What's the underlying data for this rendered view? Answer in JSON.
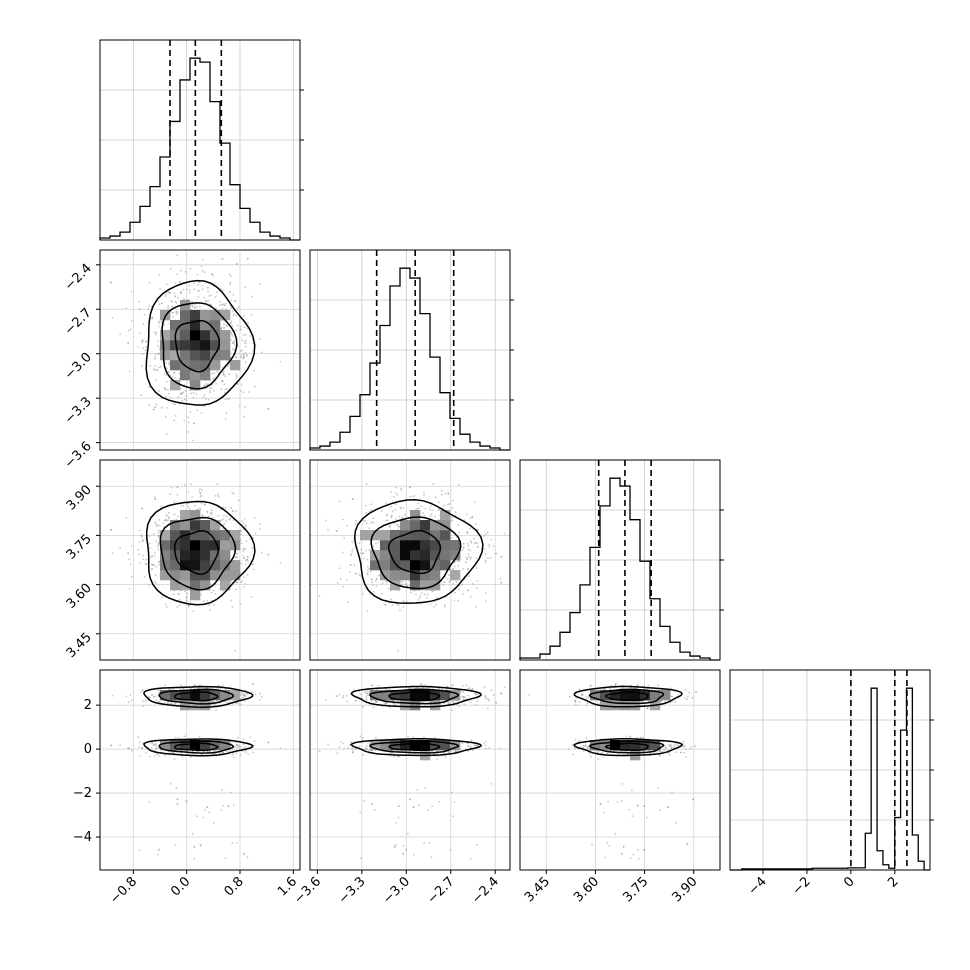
{
  "chart_data": {
    "type": "corner",
    "title": "",
    "grid": true,
    "n_params": 4,
    "params": [
      {
        "range": [
          -1.3,
          1.7
        ],
        "ticks": [
          -0.8,
          0.0,
          0.8,
          1.6
        ],
        "tick_labels": [
          "−0.8",
          "0.0",
          "0.8",
          "1.6"
        ],
        "quantiles": [
          -0.25,
          0.13,
          0.52
        ],
        "hist": [
          1,
          2,
          4,
          9,
          17,
          27,
          42,
          60,
          81,
          92,
          90,
          70,
          49,
          28,
          16,
          9,
          4,
          2,
          1,
          0
        ]
      },
      {
        "range": [
          -3.65,
          -2.3
        ],
        "ticks": [
          -3.6,
          -3.3,
          -3.0,
          -2.7,
          -2.4
        ],
        "tick_labels": [
          "−3.6",
          "−3.3",
          "−3.0",
          "−2.7",
          "−2.4"
        ],
        "quantiles": [
          -3.2,
          -2.94,
          -2.68
        ],
        "hist": [
          1,
          2,
          4,
          9,
          17,
          28,
          44,
          63,
          83,
          92,
          87,
          69,
          47,
          29,
          16,
          8,
          4,
          2,
          1,
          0
        ]
      },
      {
        "range": [
          3.37,
          3.98
        ],
        "ticks": [
          3.45,
          3.6,
          3.75,
          3.9
        ],
        "tick_labels": [
          "3.45",
          "3.60",
          "3.75",
          "3.90"
        ],
        "quantiles": [
          3.61,
          3.69,
          3.77
        ],
        "hist": [
          1,
          1,
          3,
          7,
          14,
          24,
          38,
          57,
          78,
          92,
          88,
          71,
          50,
          31,
          17,
          9,
          4,
          2,
          1,
          0
        ]
      },
      {
        "range": [
          -5.5,
          3.6
        ],
        "ticks": [
          -4,
          -2,
          0,
          2
        ],
        "tick_labels": [
          "−4",
          "−2",
          "0",
          "2"
        ],
        "quantiles": [
          0.0,
          2.0,
          2.55
        ],
        "hist": [
          0,
          0,
          0.3,
          0.3,
          0.3,
          0.3,
          0.3,
          0.3,
          0.3,
          0.3,
          0.3,
          0.3,
          0.3,
          0.3,
          0.5,
          0.5,
          0.5,
          0.5,
          0.5,
          0.5,
          0.6,
          0.6,
          0.6,
          10.5,
          52,
          5.5,
          1.5,
          0.5,
          15,
          40,
          52,
          10,
          2.5,
          0
        ]
      }
    ],
    "joint": {
      "centers": [
        0.15,
        -2.94,
        3.7
      ],
      "sigmas": [
        0.38,
        0.2,
        0.075
      ],
      "modes": [
        {
          "value": 2.4,
          "sigma": 0.22,
          "weight": 0.52
        },
        {
          "value": 0.1,
          "sigma": 0.18,
          "weight": 0.45
        }
      ],
      "outliers_range": [
        -5.0,
        -1.2
      ]
    }
  }
}
